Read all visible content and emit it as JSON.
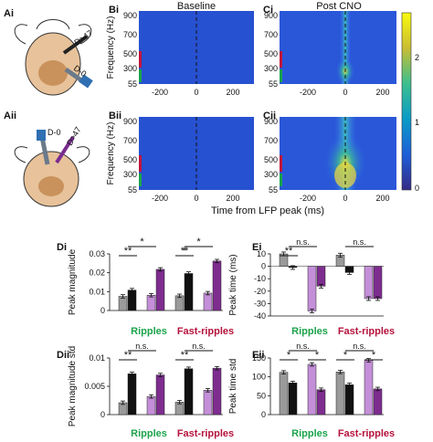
{
  "panel_labels": {
    "ai": "Ai",
    "aii": "Aii",
    "bi": "Bi",
    "bii": "Bii",
    "ci": "Ci",
    "cii": "Cii",
    "di": "Di",
    "dii": "Dii",
    "ei": "Ei",
    "eii": "Eii"
  },
  "titles": {
    "baseline": "Baseline",
    "post_cno": "Post CNO"
  },
  "illustration": {
    "top_labels": [
      "D>47",
      "D-0"
    ],
    "bottom_labels": [
      "D-0",
      "D>47"
    ]
  },
  "spectrogram": {
    "ylabel": "Frequency (Hz)",
    "xlabel": "Time from LFP peak (ms)",
    "yticks": [
      "900",
      "700",
      "500",
      "300",
      "55"
    ],
    "xticks": [
      "-200",
      "0",
      "200"
    ],
    "colorbar_ticks": [
      "2",
      "1",
      "0"
    ]
  },
  "bar_panels": {
    "di_ylabel": "Peak magnitude",
    "dii_ylabel": "Peak magnitude std",
    "ei_ylabel": "Peak time (ms)",
    "eii_ylabel": "Peak time std",
    "group_ripples": "Ripples",
    "group_fast": "Fast-ripples",
    "di_yticks": [
      "0.03",
      "0.02",
      "0.01",
      "0"
    ],
    "dii_yticks": [
      "0.01",
      "0.005",
      "0"
    ],
    "ei_yticks": [
      "10",
      "0",
      "-10",
      "-20",
      "-30",
      "-40"
    ],
    "eii_yticks": [
      "150",
      "100",
      "50",
      "0"
    ],
    "sig_star": "*",
    "sig_double": "**",
    "sig_ns": "n.s."
  },
  "colors": {
    "ripples_label": "#1aa34a",
    "fast_label": "#b5123b",
    "gray": "#9a9a9a",
    "black": "#111111",
    "light_purple": "#c48fd8",
    "dark_purple": "#7e2d8f"
  },
  "chart_data": [
    {
      "type": "bar",
      "panel": "Di",
      "categories": [
        "Ripples",
        "Fast-ripples"
      ],
      "ylabel": "Peak magnitude",
      "ylim": [
        0,
        0.03
      ],
      "series": [
        {
          "values": [
            0.0075,
            0.0078
          ]
        },
        {
          "values": [
            0.0108,
            0.0196
          ]
        },
        {
          "values": [
            0.0081,
            0.0092
          ]
        },
        {
          "values": [
            0.0218,
            0.0262
          ]
        }
      ]
    },
    {
      "type": "bar",
      "panel": "Dii",
      "categories": [
        "Ripples",
        "Fast-ripples"
      ],
      "ylabel": "Peak magnitude std",
      "ylim": [
        0,
        0.01
      ],
      "series": [
        {
          "values": [
            0.0021,
            0.0022
          ]
        },
        {
          "values": [
            0.0072,
            0.0081
          ]
        },
        {
          "values": [
            0.0032,
            0.0043
          ]
        },
        {
          "values": [
            0.007,
            0.0082
          ]
        }
      ]
    },
    {
      "type": "bar",
      "panel": "Ei",
      "categories": [
        "Ripples",
        "Fast-ripples"
      ],
      "ylabel": "Peak time (ms)",
      "ylim": [
        -40,
        10
      ],
      "series": [
        {
          "values": [
            10,
            9
          ]
        },
        {
          "values": [
            -1,
            -5
          ]
        },
        {
          "values": [
            -36,
            -26
          ]
        },
        {
          "values": [
            -16,
            -26
          ]
        }
      ]
    },
    {
      "type": "bar",
      "panel": "Eii",
      "categories": [
        "Ripples",
        "Fast-ripples"
      ],
      "ylabel": "Peak time std",
      "ylim": [
        0,
        150
      ],
      "series": [
        {
          "values": [
            112,
            113
          ]
        },
        {
          "values": [
            84,
            79
          ]
        },
        {
          "values": [
            133,
            144
          ]
        },
        {
          "values": [
            66,
            68
          ]
        }
      ]
    }
  ]
}
